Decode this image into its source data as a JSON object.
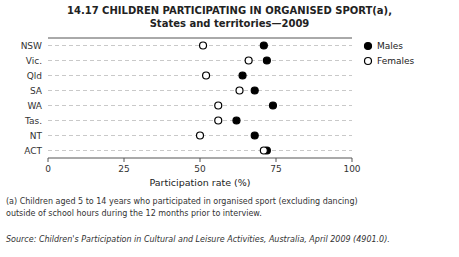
{
  "chart_data": {
    "type": "dot",
    "orientation": "horizontal",
    "title": "14.17   CHILDREN PARTICIPATING IN ORGANISED SPORT(a),",
    "subtitle": "States and territories—2009",
    "xlabel": "Participation rate (%)",
    "categories": [
      "NSW",
      "Vic.",
      "Qld",
      "SA",
      "WA",
      "Tas.",
      "NT",
      "ACT"
    ],
    "series": [
      {
        "name": "Males",
        "color": "#000000",
        "marker": "circle",
        "values": [
          71,
          72,
          64,
          68,
          74,
          62,
          68,
          72
        ]
      },
      {
        "name": "Females",
        "color": "#000000",
        "marker": "circle-open",
        "values": [
          51,
          66,
          52,
          63,
          56,
          56,
          50,
          71
        ]
      }
    ],
    "xlim": [
      0,
      100
    ],
    "xticks": [
      0,
      25,
      50,
      75,
      100
    ],
    "grid": true,
    "legend": "right",
    "notes": [
      "(a) Children aged 5 to 14 years who participated in organised sport (excluding dancing)",
      "outside of school hours during the 12 months prior to interview."
    ],
    "source": "Source: Children's Participation in Cultural and Leisure Activities, Australia, April 2009 (4901.0)."
  }
}
